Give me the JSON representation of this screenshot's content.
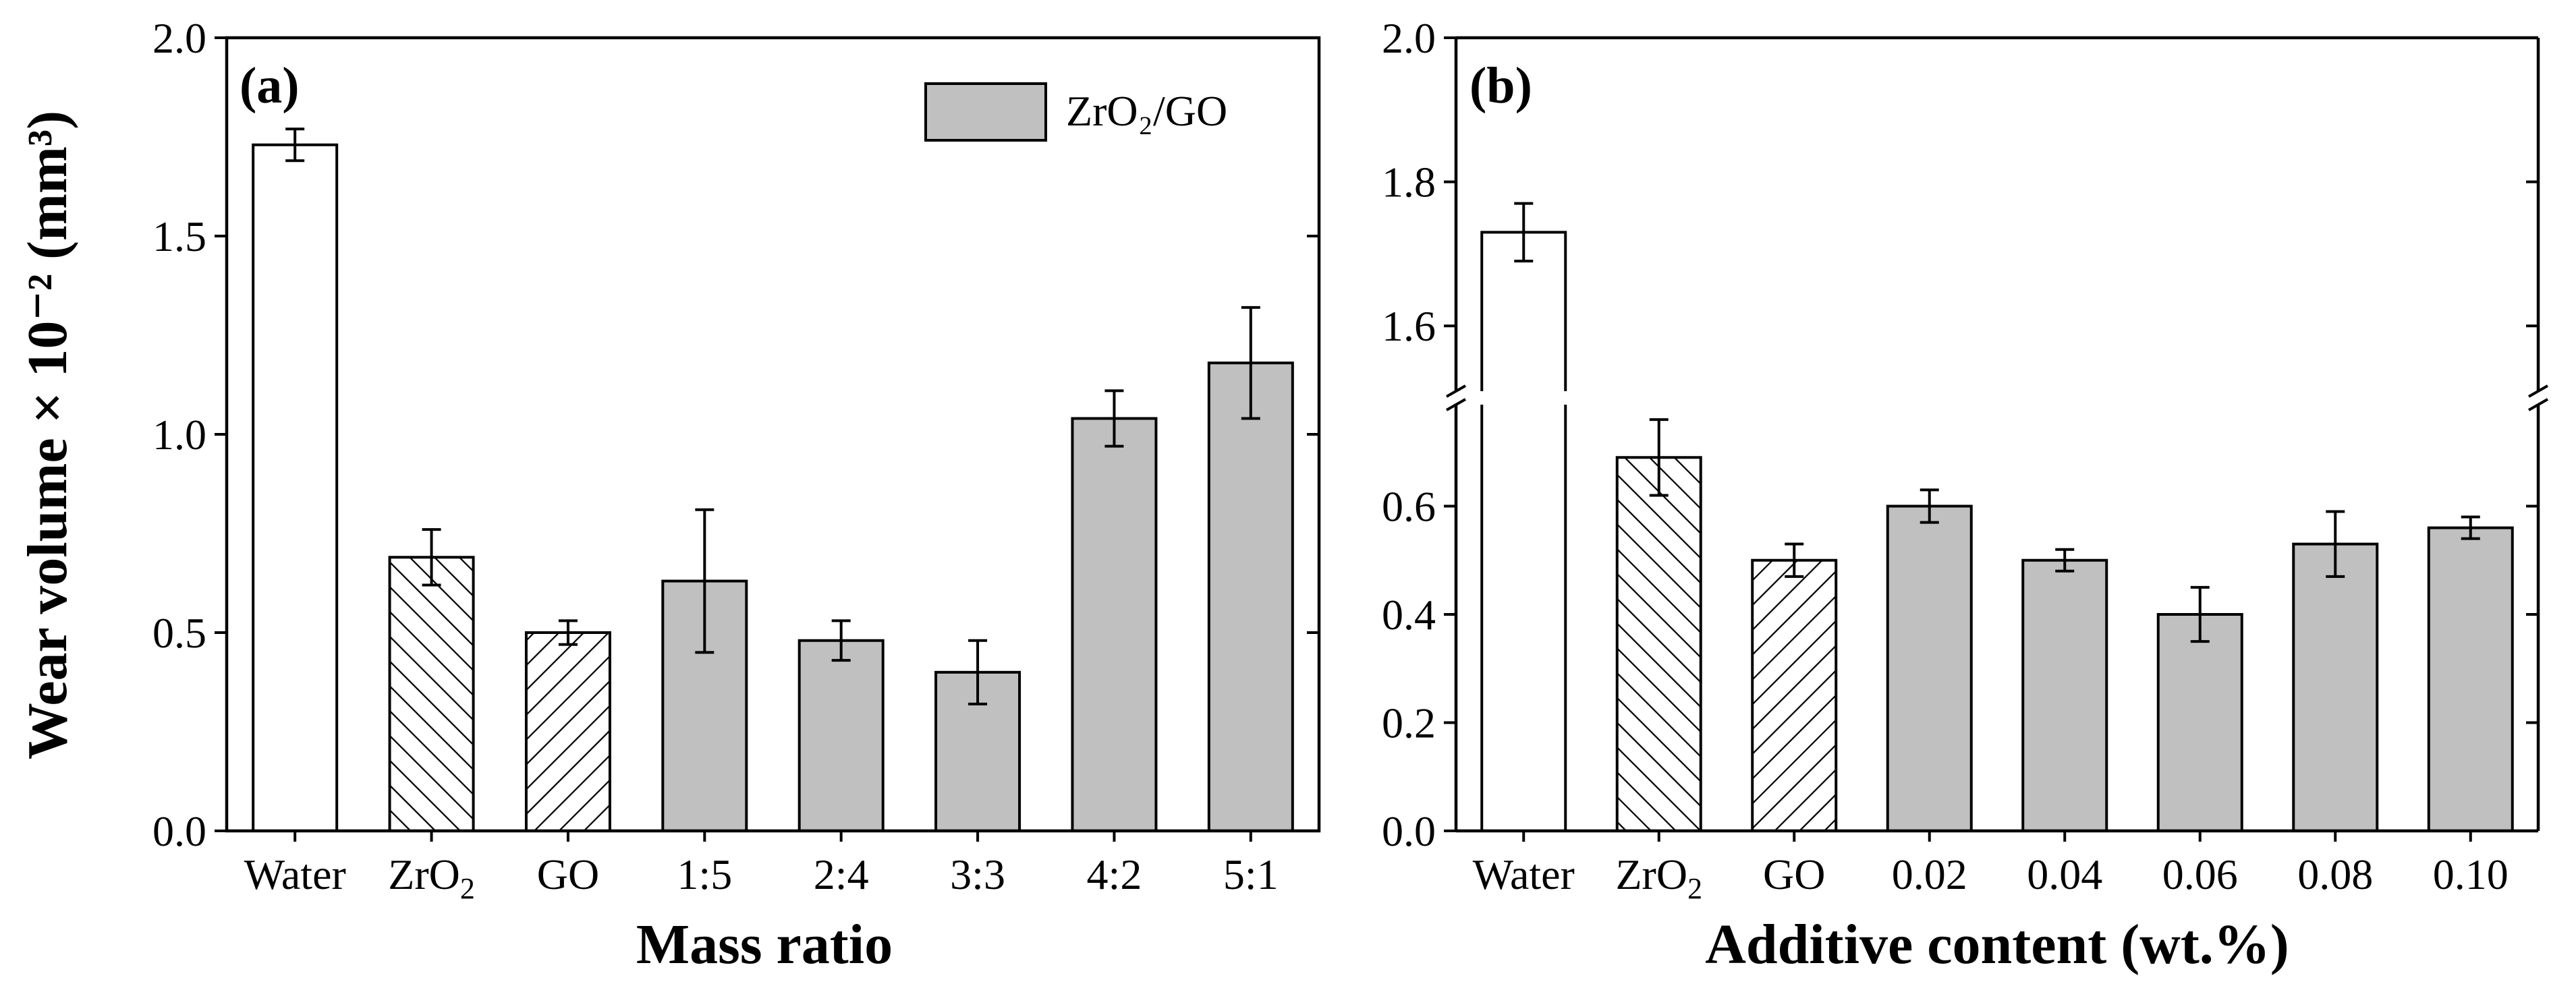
{
  "colors": {
    "gray_bar": "#c0c0c0",
    "white_bar": "#ffffff",
    "stroke": "#000000"
  },
  "y_axis_title": "Wear volume × 10⁻² (mm³)",
  "legend": {
    "label": "ZrO₂/GO"
  },
  "chart_data": [
    {
      "type": "bar",
      "panel_label": "(a)",
      "xlabel": "Mass ratio",
      "ylabel": "Wear volume × 10⁻² (mm³)",
      "ylim": [
        0,
        2.0
      ],
      "yticks": [
        "0.0",
        "0.5",
        "1.0",
        "1.5",
        "2.0"
      ],
      "categories": [
        "Water",
        "ZrO₂",
        "GO",
        "1:5",
        "2:4",
        "3:3",
        "4:2",
        "5:1"
      ],
      "values": [
        1.73,
        0.69,
        0.5,
        0.63,
        0.48,
        0.4,
        1.04,
        1.18
      ],
      "errors": [
        0.04,
        0.07,
        0.03,
        0.18,
        0.05,
        0.08,
        0.07,
        0.14
      ],
      "fills": [
        "white",
        "hatch-back",
        "hatch-fwd",
        "gray",
        "gray",
        "gray",
        "gray",
        "gray"
      ],
      "legend": "top-right"
    },
    {
      "type": "bar",
      "panel_label": "(b)",
      "xlabel": "Additive content (wt.%)",
      "ylabel": "",
      "axis_break": [
        0.8,
        1.5
      ],
      "ylim": [
        0,
        2.0
      ],
      "yticks": [
        "0.0",
        "0.2",
        "0.4",
        "0.6",
        "1.6",
        "1.8",
        "2.0"
      ],
      "categories": [
        "Water",
        "ZrO₂",
        "GO",
        "0.02",
        "0.04",
        "0.06",
        "0.08",
        "0.10"
      ],
      "values": [
        1.73,
        0.69,
        0.5,
        0.6,
        0.5,
        0.4,
        0.53,
        0.56
      ],
      "errors": [
        0.04,
        0.07,
        0.03,
        0.03,
        0.02,
        0.05,
        0.06,
        0.02
      ],
      "fills": [
        "white",
        "hatch-back",
        "hatch-fwd",
        "gray",
        "gray",
        "gray",
        "gray",
        "gray"
      ]
    }
  ]
}
